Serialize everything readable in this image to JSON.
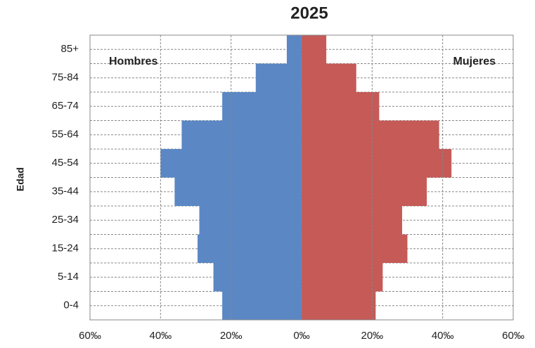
{
  "chart_data": {
    "type": "pyramid",
    "title": "2025",
    "y_label": "Edad",
    "categories": [
      "0-4",
      "5-14",
      "15-24",
      "25-34",
      "35-44",
      "45-54",
      "55-64",
      "65-74",
      "75-84",
      "85+"
    ],
    "series": [
      {
        "name": "Hombres",
        "color": "#5b87c5",
        "values": [
          -22.5,
          -25,
          -29.5,
          -29,
          -36,
          -40,
          -34,
          -22.5,
          -13,
          -4.2
        ]
      },
      {
        "name": "Mujeres",
        "color": "#c55a57",
        "values": [
          21,
          23,
          30,
          28.5,
          35.5,
          42.5,
          39,
          22,
          15.5,
          7
        ]
      }
    ],
    "xlim": [
      -60,
      60
    ],
    "xticks": [
      {
        "value": -60,
        "label": "60‰"
      },
      {
        "value": -40,
        "label": "40‰"
      },
      {
        "value": -20,
        "label": "20‰"
      },
      {
        "value": 0,
        "label": "0‰"
      },
      {
        "value": 20,
        "label": "20‰"
      },
      {
        "value": 40,
        "label": "40‰"
      },
      {
        "value": 60,
        "label": "60‰"
      }
    ],
    "grid": true
  }
}
